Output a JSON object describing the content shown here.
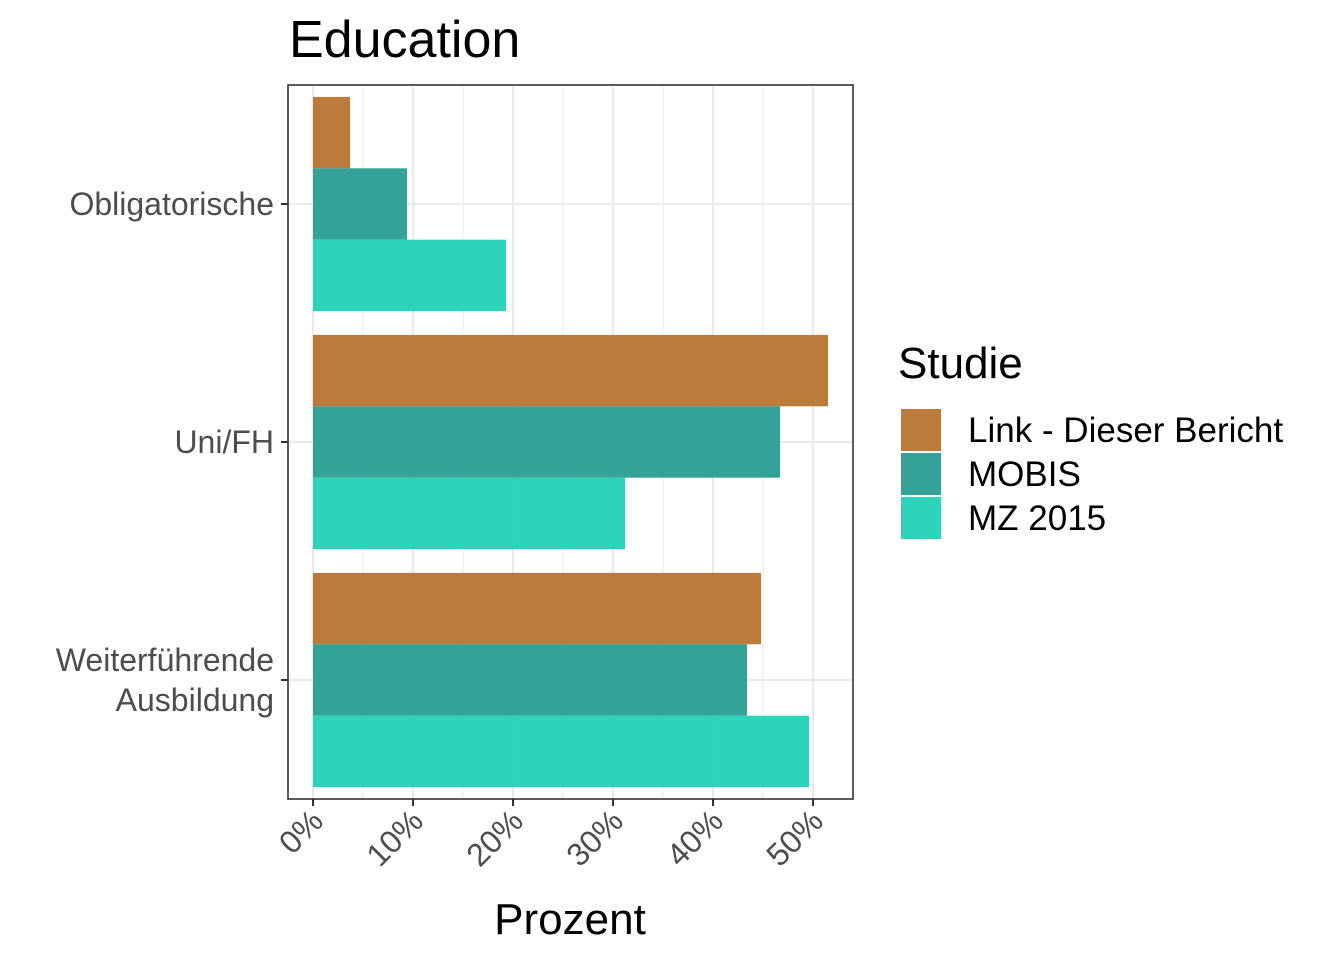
{
  "chart_data": {
    "type": "bar",
    "orientation": "horizontal",
    "title": "Education",
    "xlabel": "Prozent",
    "ylabel": "",
    "categories": [
      "Obligatorische",
      "Uni/FH",
      "Weiterführende\nAusbildung"
    ],
    "xlim": [
      -0.025,
      0.54
    ],
    "xticks": [
      0,
      0.1,
      0.2,
      0.3,
      0.4,
      0.5
    ],
    "xtick_labels": [
      "0%",
      "10%",
      "20%",
      "30%",
      "40%",
      "50%"
    ],
    "grid": true,
    "legend": {
      "title": "Studie",
      "position": "right"
    },
    "series": [
      {
        "name": "Link - Dieser Bericht",
        "color": "#B87430",
        "values": [
          0.037,
          0.515,
          0.448
        ]
      },
      {
        "name": "MOBIS",
        "color": "#2A9D92",
        "values": [
          0.094,
          0.467,
          0.434
        ]
      },
      {
        "name": "MZ 2015",
        "color": "#22D2B8",
        "values": [
          0.193,
          0.312,
          0.496
        ]
      }
    ]
  }
}
